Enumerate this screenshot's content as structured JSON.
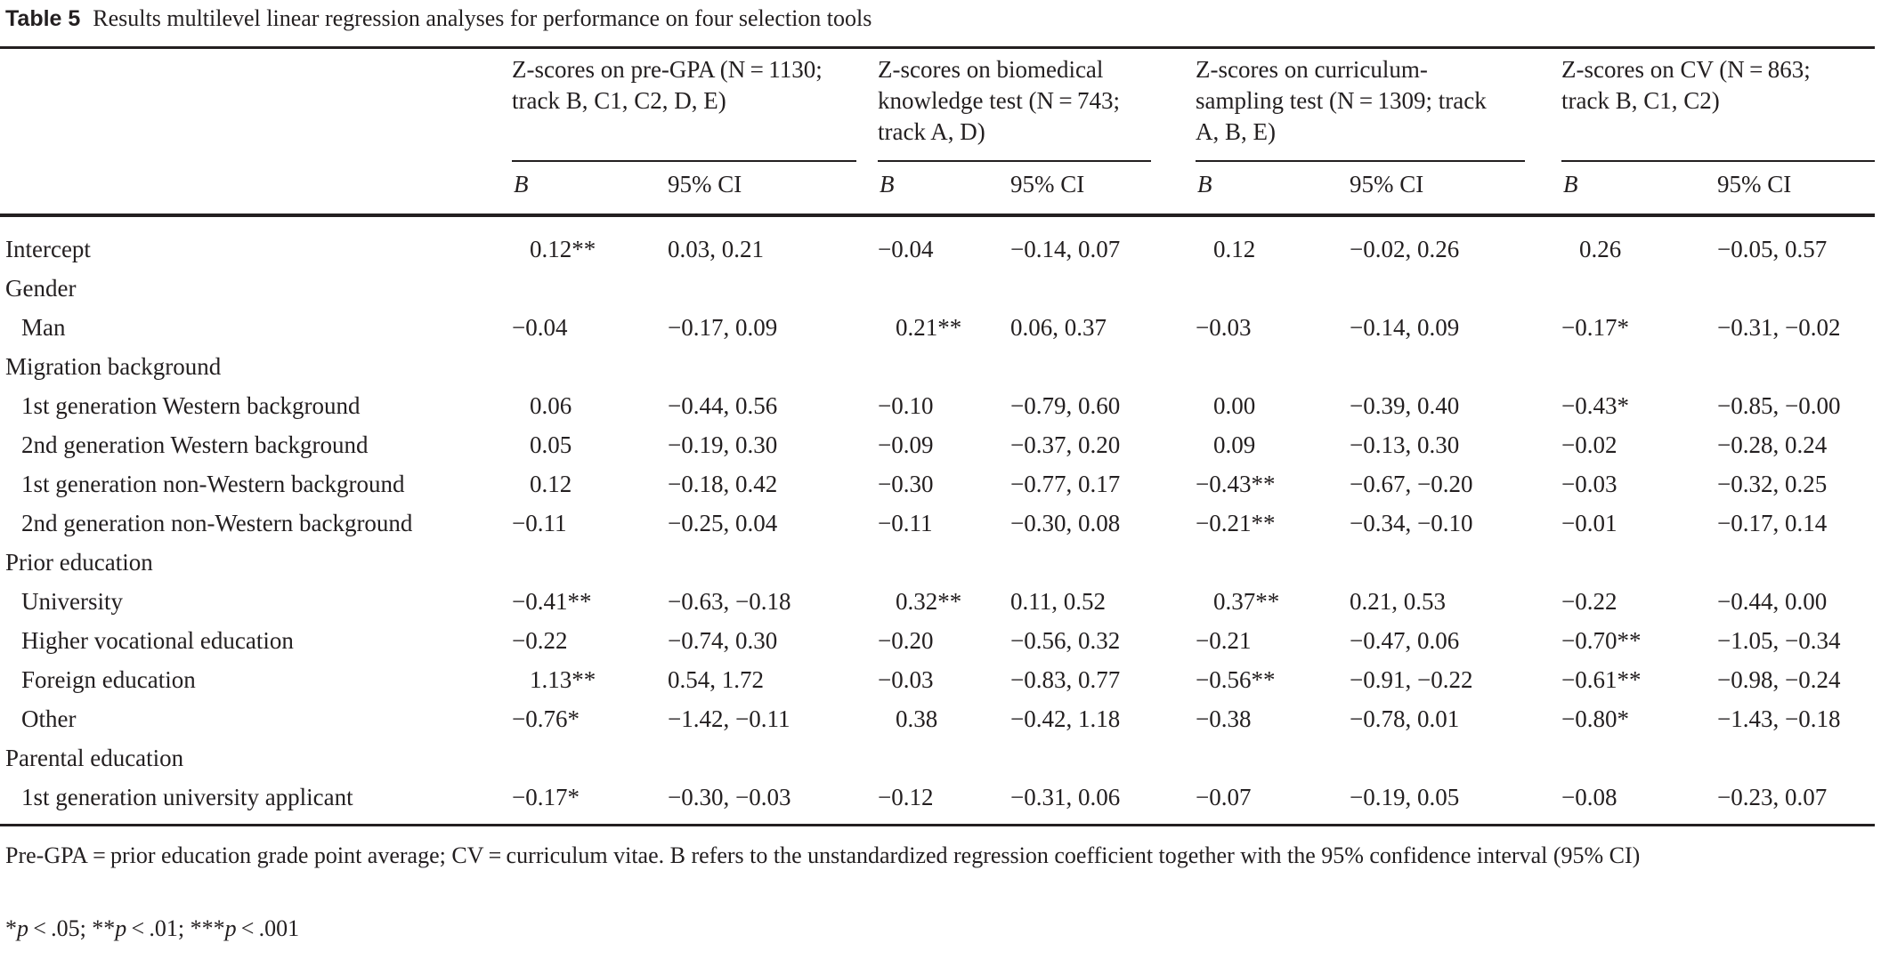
{
  "caption": {
    "label": "Table 5",
    "text": "Results multilevel linear regression analyses for performance on four selection tools"
  },
  "groups": [
    {
      "line1": "Z-scores on pre-GPA (N = 1130;",
      "line2": "track B, C1, C2, D, E)",
      "line3": ""
    },
    {
      "line1": "Z-scores on biomedical",
      "line2": "knowledge test (N = 743;",
      "line3": "track A, D)"
    },
    {
      "line1": "Z-scores on curriculum-",
      "line2": "sampling test (N = 1309; track",
      "line3": "A, B, E)"
    },
    {
      "line1": "Z-scores on CV (N = 863;",
      "line2": "track B, C1, C2)",
      "line3": ""
    }
  ],
  "col_headers": {
    "b": "B",
    "ci": "95% CI"
  },
  "rows": [
    {
      "label": "Intercept",
      "indent": false,
      "cells": [
        "0.12**",
        "0.03, 0.21",
        "−0.04",
        "−0.14, 0.07",
        "0.12",
        "−0.02, 0.26",
        "0.26",
        "−0.05, 0.57"
      ]
    },
    {
      "label": "Gender",
      "indent": false,
      "cells": []
    },
    {
      "label": "Man",
      "indent": true,
      "cells": [
        "−0.04",
        "−0.17, 0.09",
        "0.21**",
        "0.06, 0.37",
        "−0.03",
        "−0.14, 0.09",
        "−0.17*",
        "−0.31, −0.02"
      ]
    },
    {
      "label": "Migration background",
      "indent": false,
      "cells": []
    },
    {
      "label": "1st generation Western background",
      "indent": true,
      "cells": [
        "0.06",
        "−0.44, 0.56",
        "−0.10",
        "−0.79, 0.60",
        "0.00",
        "−0.39, 0.40",
        "−0.43*",
        "−0.85, −0.00"
      ]
    },
    {
      "label": "2nd generation Western background",
      "indent": true,
      "cells": [
        "0.05",
        "−0.19, 0.30",
        "−0.09",
        "−0.37, 0.20",
        "0.09",
        "−0.13, 0.30",
        "−0.02",
        "−0.28, 0.24"
      ]
    },
    {
      "label": "1st generation non-Western background",
      "indent": true,
      "cells": [
        "0.12",
        "−0.18, 0.42",
        "−0.30",
        "−0.77, 0.17",
        "−0.43**",
        "−0.67, −0.20",
        "−0.03",
        "−0.32, 0.25"
      ]
    },
    {
      "label": "2nd generation non-Western background",
      "indent": true,
      "cells": [
        "−0.11",
        "−0.25, 0.04",
        "−0.11",
        "−0.30, 0.08",
        "−0.21**",
        "−0.34, −0.10",
        "−0.01",
        "−0.17, 0.14"
      ]
    },
    {
      "label": "Prior education",
      "indent": false,
      "cells": []
    },
    {
      "label": "University",
      "indent": true,
      "cells": [
        "−0.41**",
        "−0.63, −0.18",
        "0.32**",
        "0.11, 0.52",
        "0.37**",
        "0.21, 0.53",
        "−0.22",
        "−0.44, 0.00"
      ]
    },
    {
      "label": "Higher vocational education",
      "indent": true,
      "cells": [
        "−0.22",
        "−0.74, 0.30",
        "−0.20",
        "−0.56, 0.32",
        "−0.21",
        "−0.47, 0.06",
        "−0.70**",
        "−1.05, −0.34"
      ]
    },
    {
      "label": "Foreign education",
      "indent": true,
      "cells": [
        "1.13**",
        "0.54, 1.72",
        "−0.03",
        "−0.83, 0.77",
        "−0.56**",
        "−0.91, −0.22",
        "−0.61**",
        "−0.98, −0.24"
      ]
    },
    {
      "label": "Other",
      "indent": true,
      "cells": [
        "−0.76*",
        "−1.42, −0.11",
        "0.38",
        "−0.42, 1.18",
        "−0.38",
        "−0.78, 0.01",
        "−0.80*",
        "−1.43, −0.18"
      ]
    },
    {
      "label": "Parental education",
      "indent": false,
      "cells": []
    },
    {
      "label": "1st generation university applicant",
      "indent": true,
      "cells": [
        "−0.17*",
        "−0.30, −0.03",
        "−0.12",
        "−0.31, 0.06",
        "−0.07",
        "−0.19, 0.05",
        "−0.08",
        "−0.23, 0.07"
      ]
    }
  ],
  "footnote": "Pre-GPA = prior education grade point average; CV = curriculum vitae. B refers to the unstandardized regression coefficient together with the 95% confidence interval (95% CI)",
  "significance": [
    {
      "sym": "*",
      "p": "p",
      "rest": " < .05; "
    },
    {
      "sym": "**",
      "p": "p",
      "rest": " < .01; "
    },
    {
      "sym": "***",
      "p": "p",
      "rest": " < .001"
    }
  ]
}
